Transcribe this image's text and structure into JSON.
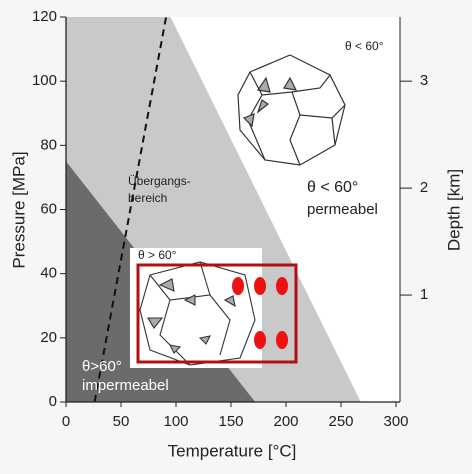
{
  "chart_data": {
    "type": "phase-diagram",
    "xlabel": "Temperature [°C]",
    "ylabel": "Pressure [MPa]",
    "y2label": "Depth [km]",
    "xlim": [
      0,
      300
    ],
    "xticks": [
      0,
      50,
      100,
      150,
      200,
      250,
      300
    ],
    "ylim": [
      0,
      120
    ],
    "yticks": [
      0,
      20,
      40,
      60,
      80,
      100,
      120
    ],
    "y2lim": [
      0,
      3.6
    ],
    "y2ticks": [
      1,
      2,
      3
    ],
    "regions": [
      {
        "color": "#c9c9c9",
        "x": [
          0,
          95,
          268,
          0
        ],
        "y": [
          120,
          120,
          0,
          0
        ]
      },
      {
        "color": "#6b6b6b",
        "x": [
          0,
          172,
          0
        ],
        "y": [
          75,
          0,
          0
        ]
      }
    ],
    "lines": [
      {
        "color": "#111111",
        "dash": true,
        "x": [
          26,
          91
        ],
        "y": [
          0,
          120
        ]
      }
    ],
    "annotations": [
      "θ < 60°",
      "Übergangs-",
      "bereich",
      "θ < 60°",
      "permeabel",
      "θ > 60°",
      "θ>60°",
      "impermeabel"
    ]
  }
}
